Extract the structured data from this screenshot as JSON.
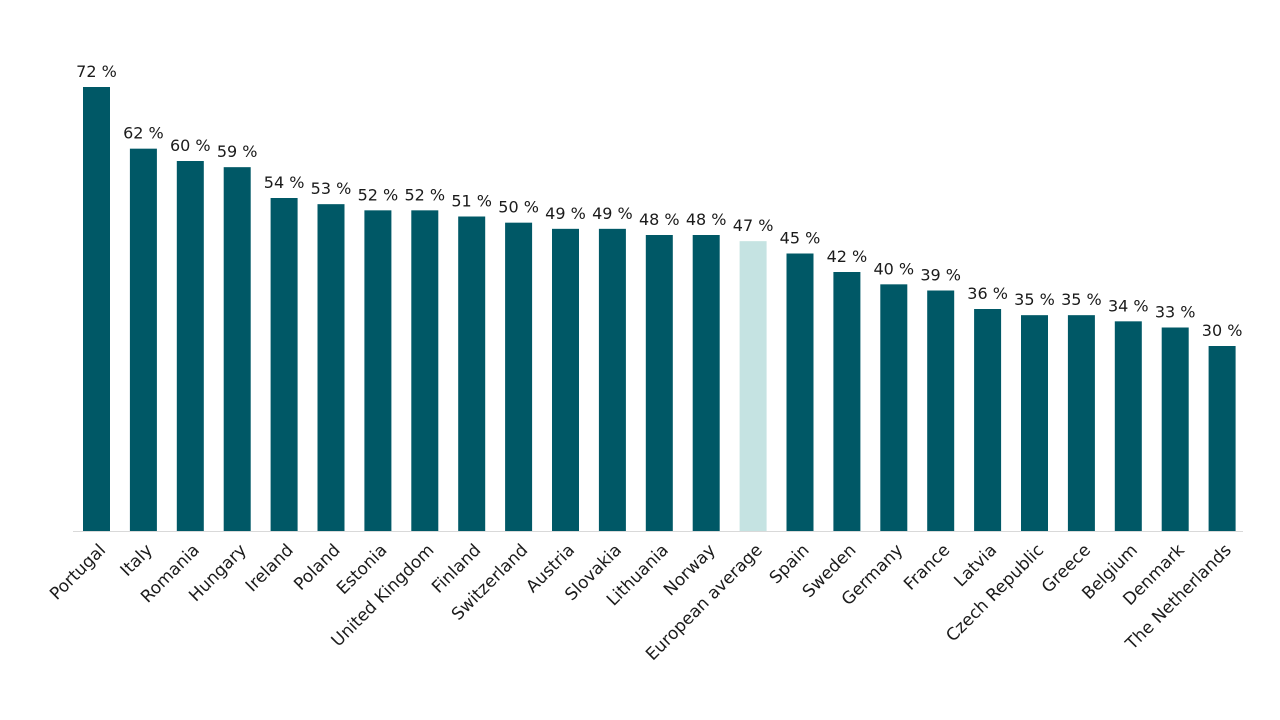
{
  "chart_data": {
    "type": "bar",
    "title": "",
    "xlabel": "",
    "ylabel": "",
    "ylim": [
      0,
      72
    ],
    "grid": false,
    "legend": "none",
    "value_suffix": " %",
    "colors": {
      "bar": "#005866",
      "highlight": "#c5e3e2",
      "axis": "#d9d9d9"
    },
    "highlight_category": "European average",
    "categories": [
      "Portugal",
      "Italy",
      "Romania",
      "Hungary",
      "Ireland",
      "Poland",
      "Estonia",
      "United Kingdom",
      "Finland",
      "Switzerland",
      "Austria",
      "Slovakia",
      "Lithuania",
      "Norway",
      "European average",
      "Spain",
      "Sweden",
      "Germany",
      "France",
      "Latvia",
      "Czech Republic",
      "Greece",
      "Belgium",
      "Denmark",
      "The Netherlands"
    ],
    "values": [
      72,
      62,
      60,
      59,
      54,
      53,
      52,
      52,
      51,
      50,
      49,
      49,
      48,
      48,
      47,
      45,
      42,
      40,
      39,
      36,
      35,
      35,
      34,
      33,
      30
    ]
  }
}
